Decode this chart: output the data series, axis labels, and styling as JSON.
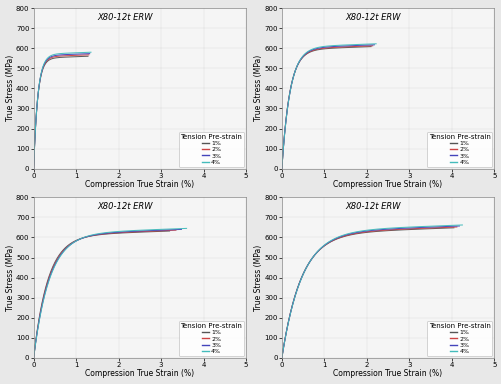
{
  "title": "X80-12t ERW",
  "xlabel": "Compression True Strain (%)",
  "ylabel": "True Stress (MPa)",
  "ylim": [
    0,
    800
  ],
  "xlim": [
    0,
    5
  ],
  "xticks": [
    0,
    1,
    2,
    3,
    4,
    5
  ],
  "yticks": [
    0,
    100,
    200,
    300,
    400,
    500,
    600,
    700,
    800
  ],
  "legend_title": "Tension Pre-strain",
  "legend_labels": [
    "1%",
    "2%",
    "3%",
    "4%"
  ],
  "line_colors": [
    "#555555",
    "#cc4444",
    "#4444bb",
    "#44bbbb"
  ],
  "fig_facecolor": "#e8e8e8",
  "ax_facecolor": "#f5f5f5",
  "subplots": [
    {
      "max_strains": [
        1.28,
        1.3,
        1.32,
        1.35
      ],
      "plateau_stresses": [
        560,
        567,
        573,
        580
      ],
      "rise_rate": 4.5
    },
    {
      "max_strains": [
        2.1,
        2.14,
        2.18,
        2.22
      ],
      "plateau_stresses": [
        608,
        612,
        617,
        622
      ],
      "rise_rate": 3.8
    },
    {
      "max_strains": [
        3.2,
        3.35,
        3.48,
        3.6
      ],
      "plateau_stresses": [
        632,
        636,
        640,
        645
      ],
      "rise_rate": 3.2
    },
    {
      "max_strains": [
        4.05,
        4.12,
        4.18,
        4.25
      ],
      "plateau_stresses": [
        648,
        652,
        657,
        662
      ],
      "rise_rate": 3.0
    }
  ]
}
